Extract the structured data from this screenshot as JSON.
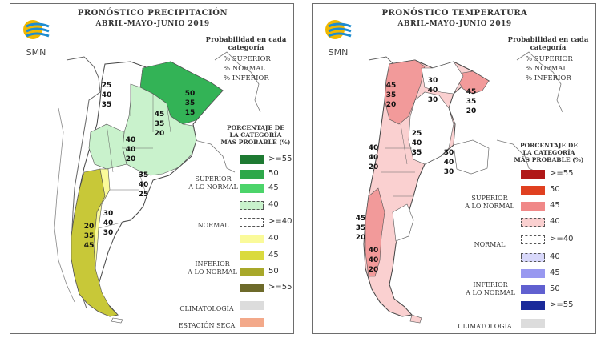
{
  "precip": {
    "title1": "PRONÓSTICO PRECIPITACIÓN",
    "title2": "ABRIL-MAYO-JUNIO 2019",
    "logo_text": "SMN",
    "prob_title1": "Probabilidad en cada",
    "prob_title2": "categoría",
    "prob_lines": [
      "% SUPERIOR",
      "% NORMAL",
      "% INFERIOR"
    ],
    "legend_title1": "PORCENTAJE DE",
    "legend_title2": "LA CATEGORÍA",
    "legend_title3": "MÁS PROBABLE (%)",
    "legend": [
      {
        "label": ">=55",
        "color": "#1e7a32"
      },
      {
        "label": "50",
        "color": "#2ea84a"
      },
      {
        "label": "45",
        "color": "#4cd46a"
      },
      {
        "label": "40",
        "color": "#c9f2cc"
      },
      {
        "label": ">=40",
        "color": "#ffffff"
      },
      {
        "label": "40",
        "color": "#fafa9a"
      },
      {
        "label": "45",
        "color": "#dada3e"
      },
      {
        "label": "50",
        "color": "#a8a82a"
      },
      {
        "label": ">=55",
        "color": "#6d6a2a"
      },
      {
        "label": "",
        "color": "#dcdcdc"
      },
      {
        "label": "",
        "color": "#f3a98a"
      }
    ],
    "cat_superior1": "SUPERIOR",
    "cat_superior2": "A LO NORMAL",
    "cat_normal": "NORMAL",
    "cat_inferior1": "INFERIOR",
    "cat_inferior2": "A LO NORMAL",
    "cat_clim": "CLIMATOLOGÍA",
    "cat_seca": "ESTACIÓN SECA",
    "map_labels": [
      {
        "t": "25"
      },
      {
        "t": "40"
      },
      {
        "t": "35"
      },
      {
        "t": "50"
      },
      {
        "t": "35"
      },
      {
        "t": "15"
      },
      {
        "t": "45"
      },
      {
        "t": "35"
      },
      {
        "t": "20"
      },
      {
        "t": "40"
      },
      {
        "t": "40"
      },
      {
        "t": "20"
      },
      {
        "t": "35"
      },
      {
        "t": "40"
      },
      {
        "t": "25"
      },
      {
        "t": "30"
      },
      {
        "t": "40"
      },
      {
        "t": "30"
      },
      {
        "t": "20"
      },
      {
        "t": "35"
      },
      {
        "t": "45"
      }
    ]
  },
  "temp": {
    "title1": "PRONÓSTICO TEMPERATURA",
    "title2": "ABRIL-MAYO-JUNIO 2019",
    "logo_text": "SMN",
    "prob_title1": "Probabilidad en cada",
    "prob_title2": "categoría",
    "prob_lines": [
      "% SUPERIOR",
      "% NORMAL",
      "% INFERIOR"
    ],
    "legend_title1": "PORCENTAJE DE",
    "legend_title2": "LA CATEGORÍA",
    "legend_title3": "MÁS PROBABLE (%)",
    "legend": [
      {
        "label": ">=55",
        "color": "#b01818"
      },
      {
        "label": "50",
        "color": "#e04020"
      },
      {
        "label": "45",
        "color": "#f08888"
      },
      {
        "label": "40",
        "color": "#fad0d0"
      },
      {
        "label": ">=40",
        "color": "#ffffff"
      },
      {
        "label": "40",
        "color": "#d8d8fa"
      },
      {
        "label": "45",
        "color": "#9898f0"
      },
      {
        "label": "50",
        "color": "#6060d0"
      },
      {
        "label": ">=55",
        "color": "#1a2a9a"
      },
      {
        "label": "",
        "color": "#dcdcdc"
      }
    ],
    "cat_superior1": "SUPERIOR",
    "cat_superior2": "A LO NORMAL",
    "cat_normal": "NORMAL",
    "cat_inferior1": "INFERIOR",
    "cat_inferior2": "A LO NORMAL",
    "cat_clim": "CLIMATOLOGÍA",
    "map_labels": [
      {
        "t": "45"
      },
      {
        "t": "35"
      },
      {
        "t": "20"
      },
      {
        "t": "30"
      },
      {
        "t": "40"
      },
      {
        "t": "30"
      },
      {
        "t": "45"
      },
      {
        "t": "35"
      },
      {
        "t": "20"
      },
      {
        "t": "25"
      },
      {
        "t": "40"
      },
      {
        "t": "35"
      },
      {
        "t": "40"
      },
      {
        "t": "40"
      },
      {
        "t": "20"
      },
      {
        "t": "30"
      },
      {
        "t": "40"
      },
      {
        "t": "30"
      },
      {
        "t": "45"
      },
      {
        "t": "35"
      },
      {
        "t": "20"
      },
      {
        "t": "40"
      },
      {
        "t": "40"
      },
      {
        "t": "20"
      }
    ]
  }
}
